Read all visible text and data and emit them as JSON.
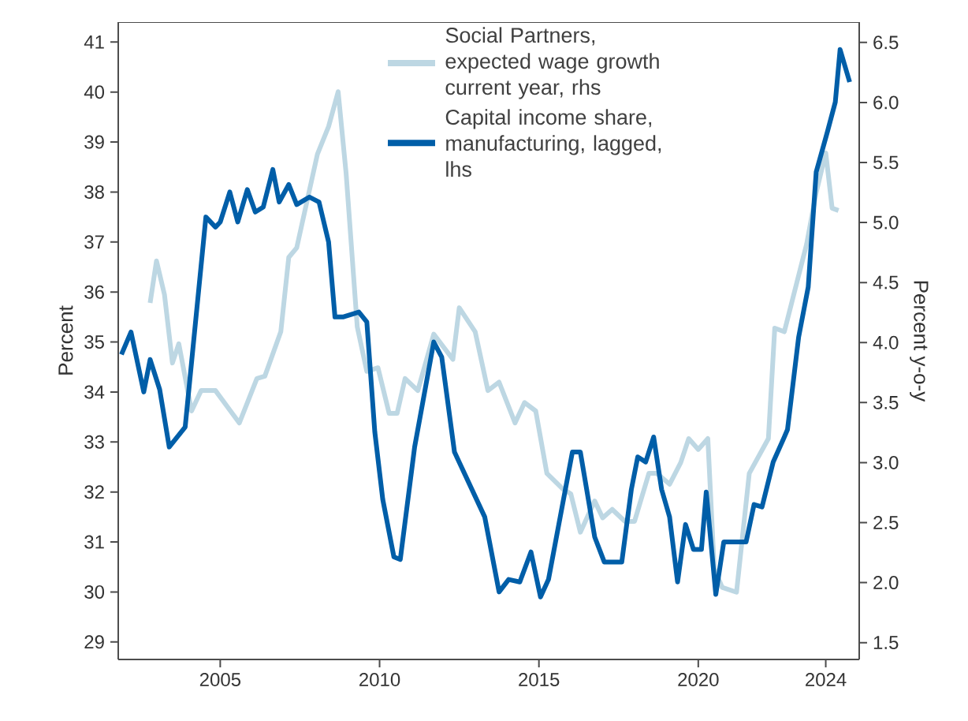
{
  "chart_data": {
    "type": "line",
    "xlabel": null,
    "ylabel": "Percent",
    "y2label": "Percent y-o-y",
    "xlim": [
      2001.8,
      2025.05
    ],
    "xticks": [
      2005,
      2010,
      2015,
      2020,
      2024
    ],
    "ylim": [
      28.65,
      41.4
    ],
    "yticks": [
      29,
      30,
      31,
      32,
      33,
      34,
      35,
      36,
      37,
      38,
      39,
      40,
      41
    ],
    "y2lim": [
      1.36,
      6.67
    ],
    "y2ticks": [
      {
        "value": 1.5,
        "label": "1.5"
      },
      {
        "value": 2,
        "label": "2.0"
      },
      {
        "value": 2.5,
        "label": "2.5"
      },
      {
        "value": 3,
        "label": "3.0"
      },
      {
        "value": 3.5,
        "label": "3.5"
      },
      {
        "value": 4,
        "label": "4.0"
      },
      {
        "value": 4.5,
        "label": "4.5"
      },
      {
        "value": 5,
        "label": "5.0"
      },
      {
        "value": 5.5,
        "label": "5.5"
      },
      {
        "value": 6,
        "label": "6.0"
      },
      {
        "value": 6.5,
        "label": "6.5"
      }
    ],
    "grid": false,
    "legend": "top right",
    "series": [
      {
        "name": "Social Partners, expected wage growth current year, rhs",
        "color": "#bdd7e3",
        "axis": "y2",
        "x": [
          2002.8,
          2003.0,
          2003.25,
          2003.5,
          2003.7,
          2004.1,
          2004.4,
          2004.85,
          2005.6,
          2006.15,
          2006.4,
          2006.9,
          2007.15,
          2007.4,
          2008.05,
          2008.4,
          2008.7,
          2008.95,
          2009.3,
          2009.6,
          2009.95,
          2010.3,
          2010.55,
          2010.8,
          2011.2,
          2011.7,
          2012.3,
          2012.5,
          2013.0,
          2013.4,
          2013.75,
          2014.25,
          2014.55,
          2014.9,
          2015.25,
          2015.75,
          2016.0,
          2016.3,
          2016.75,
          2017.0,
          2017.3,
          2017.7,
          2018.0,
          2018.45,
          2018.7,
          2019.1,
          2019.45,
          2019.7,
          2020.0,
          2020.3,
          2020.5,
          2020.75,
          2021.2,
          2021.6,
          2022.2,
          2022.4,
          2022.7,
          2023.4,
          2023.7,
          2024.0,
          2024.2,
          2024.4
        ],
        "values": [
          4.33,
          4.68,
          4.4,
          3.83,
          3.99,
          3.43,
          3.6,
          3.6,
          3.33,
          3.7,
          3.72,
          4.09,
          4.71,
          4.79,
          5.57,
          5.8,
          6.09,
          5.41,
          4.13,
          3.76,
          3.79,
          3.41,
          3.41,
          3.7,
          3.6,
          4.07,
          3.86,
          4.29,
          4.09,
          3.6,
          3.67,
          3.33,
          3.5,
          3.43,
          2.91,
          2.78,
          2.74,
          2.42,
          2.68,
          2.54,
          2.61,
          2.51,
          2.51,
          2.91,
          2.91,
          2.82,
          3.0,
          3.2,
          3.11,
          3.2,
          2.12,
          1.96,
          1.92,
          2.91,
          3.2,
          4.12,
          4.09,
          4.82,
          5.25,
          5.58,
          5.12,
          5.1
        ]
      },
      {
        "name": "Capital income share, manufacturing, lagged, lhs",
        "color": "#005ea8",
        "x": [
          2001.9,
          2002.2,
          2002.6,
          2002.8,
          2003.1,
          2003.4,
          2003.9,
          2004.55,
          2004.85,
          2005.0,
          2005.3,
          2005.55,
          2005.85,
          2006.1,
          2006.35,
          2006.65,
          2006.85,
          2007.15,
          2007.4,
          2007.8,
          2008.1,
          2008.4,
          2008.6,
          2008.85,
          2009.35,
          2009.6,
          2009.85,
          2010.1,
          2010.45,
          2010.65,
          2011.1,
          2011.7,
          2011.95,
          2012.35,
          2013.3,
          2013.75,
          2014.05,
          2014.4,
          2014.75,
          2015.05,
          2015.3,
          2016.05,
          2016.3,
          2016.75,
          2017.05,
          2017.6,
          2017.9,
          2018.1,
          2018.35,
          2018.6,
          2018.85,
          2019.1,
          2019.35,
          2019.6,
          2019.85,
          2020.1,
          2020.25,
          2020.55,
          2020.8,
          2021.25,
          2021.5,
          2021.75,
          2022.0,
          2022.35,
          2022.7,
          2022.8,
          2023.15,
          2023.45,
          2023.7,
          2024.05,
          2024.3,
          2024.45,
          2024.75
        ],
        "values": [
          34.75,
          35.2,
          34.0,
          34.65,
          34.05,
          32.9,
          33.3,
          37.5,
          37.3,
          37.4,
          38.0,
          37.4,
          38.05,
          37.6,
          37.7,
          38.45,
          37.8,
          38.15,
          37.75,
          37.9,
          37.8,
          37.0,
          35.5,
          35.5,
          35.6,
          35.4,
          33.2,
          31.85,
          30.7,
          30.65,
          32.9,
          35.0,
          34.7,
          32.8,
          31.5,
          30.0,
          30.25,
          30.2,
          30.8,
          29.9,
          30.25,
          32.8,
          32.8,
          31.1,
          30.6,
          30.6,
          32.05,
          32.7,
          32.6,
          33.1,
          32.05,
          31.5,
          30.2,
          31.35,
          30.85,
          30.85,
          32.0,
          29.95,
          31.0,
          31.0,
          31.0,
          31.75,
          31.7,
          32.6,
          33.1,
          33.25,
          35.1,
          36.1,
          38.4,
          39.2,
          39.8,
          40.85,
          40.2
        ]
      }
    ]
  }
}
